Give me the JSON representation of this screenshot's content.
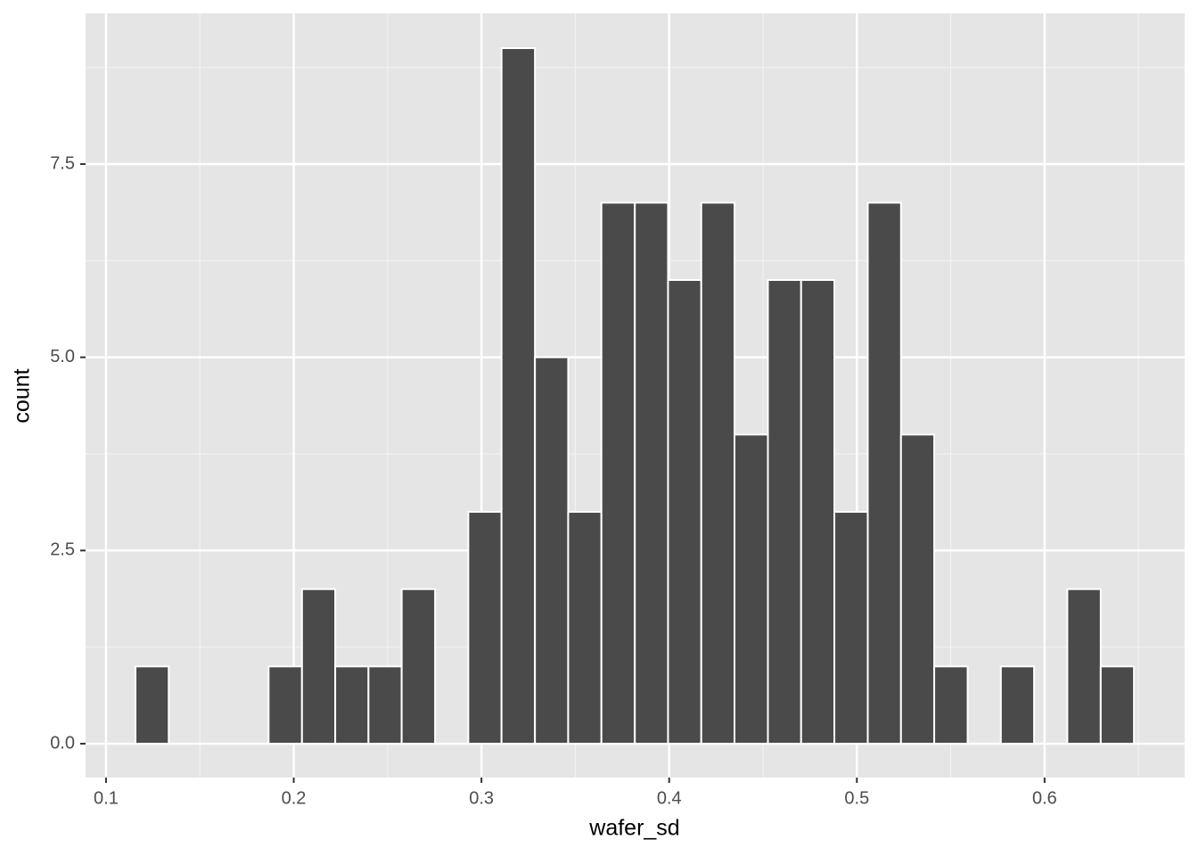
{
  "chart_data": {
    "type": "histogram",
    "x_label": "wafer_sd",
    "y_label": "count",
    "bins": [
      0.1157,
      0.1334,
      0.1512,
      0.1689,
      0.1866,
      0.2044,
      0.2221,
      0.2398,
      0.2575,
      0.2753,
      0.293,
      0.3107,
      0.3285,
      0.3462,
      0.3639,
      0.3817,
      0.3994,
      0.4171,
      0.4348,
      0.4526,
      0.4703,
      0.488,
      0.5058,
      0.5235,
      0.5412,
      0.559,
      0.5767,
      0.5944,
      0.6121,
      0.6299,
      0.6476
    ],
    "values": [
      1,
      0,
      0,
      0,
      1,
      2,
      1,
      1,
      2,
      0,
      3,
      9,
      5,
      3,
      7,
      7,
      6,
      7,
      4,
      6,
      6,
      3,
      7,
      4,
      1,
      0,
      1,
      0,
      2,
      1
    ],
    "color": "#4a4a4a",
    "xlim": [
      0.0891,
      0.6746
    ],
    "xticks": [
      0.1,
      0.2,
      0.3,
      0.4,
      0.5,
      0.6
    ],
    "ylim": [
      -0.438,
      9.45
    ],
    "yticks": [
      {
        "value": 0,
        "label": "0.0"
      },
      2.5,
      {
        "value": 5,
        "label": "5.0"
      },
      7.5
    ],
    "grid": true
  }
}
